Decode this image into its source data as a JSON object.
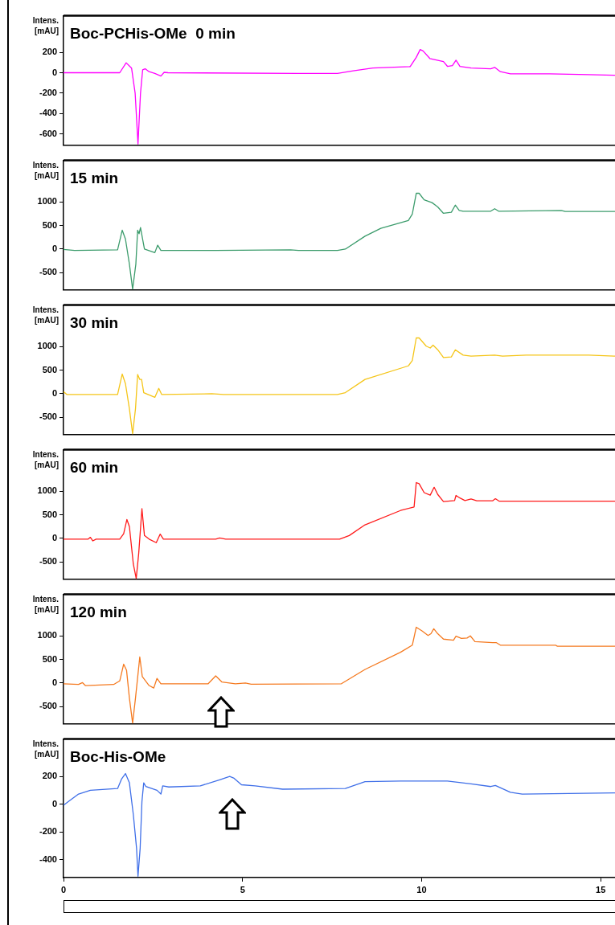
{
  "chart_data": [
    {
      "type": "line",
      "title": "Boc-PCHis-OMe  0 min",
      "ylabel": "Intens.\n[mAU]",
      "xlim": [
        0,
        15.4
      ],
      "ylim": [
        -710,
        560
      ],
      "yticks": [
        -600,
        -400,
        -200,
        0,
        200
      ],
      "tick_labels": "y",
      "grid": false,
      "legend": false,
      "marker": "none",
      "line_style": "solid",
      "series": [
        {
          "color": "#ff00ff",
          "x": [
            0,
            1.57,
            1.75,
            1.9,
            2.0,
            2.08,
            2.15,
            2.21,
            2.28,
            2.39,
            2.55,
            2.72,
            2.81,
            2.92,
            6.56,
            7.65,
            8.09,
            8.64,
            9.68,
            9.85,
            9.96,
            10.04,
            10.23,
            10.61,
            10.72,
            10.86,
            10.96,
            11.07,
            11.38,
            11.93,
            12.04,
            12.2,
            12.48,
            13.57,
            14.67,
            15.4
          ],
          "values": [
            0,
            0,
            98,
            46,
            -200,
            -700,
            -200,
            28,
            39,
            10,
            -7,
            -32,
            4,
            0,
            -7,
            -7,
            18,
            46,
            60,
            151,
            228,
            214,
            140,
            109,
            63,
            70,
            123,
            63,
            46,
            39,
            53,
            10,
            -11,
            -11,
            -18,
            -25
          ]
        }
      ]
    },
    {
      "type": "line",
      "title": "15 min",
      "ylabel": "Intens.\n[mAU]",
      "xlim": [
        0,
        15.4
      ],
      "ylim": [
        -860,
        1880
      ],
      "yticks": [
        -500,
        0,
        500,
        1000
      ],
      "tick_labels": "y",
      "grid": false,
      "legend": false,
      "marker": "none",
      "line_style": "solid",
      "series": [
        {
          "color": "#3c9c6c",
          "x": [
            0,
            0.31,
            1.51,
            1.64,
            1.73,
            1.84,
            1.93,
            2.02,
            2.07,
            2.11,
            2.15,
            2.2,
            2.26,
            2.55,
            2.63,
            2.72,
            4.25,
            6.34,
            6.56,
            7.65,
            7.87,
            8.42,
            8.86,
            9.63,
            9.74,
            9.85,
            9.93,
            10.07,
            10.29,
            10.45,
            10.61,
            10.83,
            10.94,
            11.05,
            11.16,
            11.93,
            12.04,
            12.15,
            13.9,
            14.01,
            15.4
          ],
          "values": [
            -8,
            -30,
            -15,
            400,
            212,
            -318,
            -850,
            -318,
            400,
            326,
            455,
            250,
            0,
            -76,
            83,
            -30,
            -30,
            -15,
            -30,
            -30,
            0,
            273,
            440,
            606,
            743,
            1183,
            1183,
            1046,
            985,
            894,
            758,
            781,
            932,
            819,
            803,
            803,
            856,
            803,
            819,
            796,
            796
          ]
        }
      ]
    },
    {
      "type": "line",
      "title": "30 min",
      "ylabel": "Intens.\n[mAU]",
      "xlim": [
        0,
        15.4
      ],
      "ylim": [
        -860,
        1880
      ],
      "yticks": [
        -500,
        0,
        500,
        1000
      ],
      "tick_labels": "y",
      "grid": false,
      "legend": false,
      "marker": "none",
      "line_style": "solid",
      "series": [
        {
          "color": "#f5c518",
          "x": [
            0,
            0.09,
            1.51,
            1.64,
            1.73,
            1.84,
            1.93,
            2.01,
            2.07,
            2.13,
            2.18,
            2.24,
            2.55,
            2.66,
            2.74,
            4.14,
            4.47,
            7.65,
            7.87,
            8.42,
            9.63,
            9.74,
            9.85,
            9.93,
            10.13,
            10.24,
            10.32,
            10.45,
            10.61,
            10.83,
            10.94,
            11.16,
            11.38,
            12.04,
            12.26,
            12.92,
            14.67,
            15.4
          ],
          "values": [
            45,
            -15,
            -15,
            417,
            212,
            -318,
            -850,
            -318,
            409,
            303,
            303,
            23,
            -76,
            114,
            -15,
            0,
            -15,
            -15,
            23,
            303,
            591,
            705,
            1183,
            1183,
            1008,
            970,
            1031,
            932,
            766,
            781,
            932,
            819,
            796,
            819,
            796,
            819,
            819,
            796
          ]
        }
      ]
    },
    {
      "type": "line",
      "title": "60 min",
      "ylabel": "Intens.\n[mAU]",
      "xlim": [
        0,
        15.4
      ],
      "ylim": [
        -860,
        1880
      ],
      "yticks": [
        -500,
        0,
        500,
        1000
      ],
      "tick_labels": "y",
      "grid": false,
      "legend": false,
      "marker": "none",
      "line_style": "solid",
      "series": [
        {
          "color": "#ff1a1a",
          "x": [
            0,
            0.69,
            0.75,
            0.82,
            0.91,
            1.57,
            1.68,
            1.77,
            1.84,
            1.95,
            2.03,
            2.1,
            2.19,
            2.26,
            2.39,
            2.59,
            2.7,
            2.79,
            4.25,
            4.36,
            4.53,
            7.71,
            7.98,
            8.42,
            9.41,
            9.79,
            9.85,
            9.93,
            10.07,
            10.24,
            10.35,
            10.45,
            10.61,
            10.92,
            10.96,
            11.07,
            11.21,
            11.38,
            11.54,
            11.98,
            12.06,
            12.17,
            15.4
          ],
          "values": [
            -15,
            -15,
            23,
            -53,
            -15,
            -15,
            98,
            400,
            250,
            -546,
            -850,
            -318,
            629,
            61,
            -15,
            -91,
            91,
            -15,
            -15,
            8,
            -15,
            -15,
            61,
            288,
            591,
            667,
            1183,
            1160,
            970,
            917,
            1084,
            932,
            781,
            803,
            910,
            856,
            803,
            834,
            796,
            796,
            841,
            788,
            788
          ]
        }
      ]
    },
    {
      "type": "line",
      "title": "120 min",
      "ylabel": "Intens.\n[mAU]",
      "xlim": [
        0,
        15.4
      ],
      "ylim": [
        -860,
        1880
      ],
      "yticks": [
        -500,
        0,
        500,
        1000
      ],
      "tick_labels": "y",
      "grid": false,
      "legend": false,
      "marker": "none",
      "line_style": "solid",
      "series": [
        {
          "color": "#f57a20",
          "x": [
            0,
            0.42,
            0.53,
            0.61,
            1.4,
            1.57,
            1.68,
            1.76,
            1.84,
            1.93,
            2.01,
            2.13,
            2.2,
            2.39,
            2.52,
            2.61,
            2.72,
            4.04,
            4.25,
            4.42,
            4.8,
            5.08,
            5.24,
            7.76,
            8.42,
            9.41,
            9.74,
            9.85,
            10.01,
            10.18,
            10.26,
            10.34,
            10.45,
            10.61,
            10.89,
            10.96,
            11.11,
            11.27,
            11.36,
            11.49,
            11.98,
            12.09,
            12.2,
            13.74,
            13.79,
            15.4
          ],
          "values": [
            -15,
            -30,
            8,
            -53,
            -30,
            45,
            400,
            273,
            -318,
            -850,
            -318,
            553,
            136,
            -53,
            -106,
            98,
            -15,
            -15,
            152,
            23,
            -15,
            0,
            -23,
            -15,
            288,
            652,
            803,
            1183,
            1107,
            1008,
            1046,
            1152,
            1046,
            932,
            910,
            993,
            948,
            955,
            1000,
            879,
            856,
            856,
            803,
            803,
            781,
            781
          ]
        }
      ]
    },
    {
      "type": "line",
      "title": "Boc-His-OMe",
      "ylabel": "Intens.\n[mAU]",
      "xlim": [
        0,
        15.4
      ],
      "xticks": [
        0,
        5,
        10,
        15
      ],
      "ylim": [
        -530,
        470
      ],
      "yticks": [
        -400,
        -200,
        0,
        200
      ],
      "grid": false,
      "legend": false,
      "marker": "none",
      "line_style": "solid",
      "series": [
        {
          "color": "#3f6fe8",
          "x": [
            0,
            0.14,
            0.42,
            0.75,
            1.51,
            1.62,
            1.73,
            1.84,
            1.95,
            2.04,
            2.08,
            2.14,
            2.19,
            2.24,
            2.3,
            2.61,
            2.72,
            2.77,
            2.94,
            3.82,
            4.36,
            4.64,
            4.75,
            4.97,
            5.35,
            6.12,
            7.87,
            8.42,
            9.41,
            10.72,
            11.38,
            11.93,
            12.06,
            12.48,
            12.81,
            15.4
          ],
          "values": [
            -8,
            19,
            73,
            100,
            113,
            181,
            221,
            154,
            -76,
            -319,
            -520,
            -319,
            19,
            154,
            127,
            100,
            73,
            132,
            124,
            132,
            176,
            200,
            189,
            140,
            132,
            108,
            113,
            162,
            167,
            167,
            146,
            127,
            135,
            86,
            73,
            81
          ]
        }
      ]
    }
  ]
}
